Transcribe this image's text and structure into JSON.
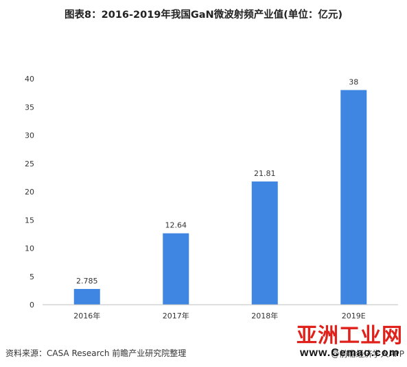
{
  "chart_data": {
    "type": "bar",
    "title": "图表8：2016-2019年我国GaN微波射频产业值(单位：亿元)",
    "categories": [
      "2016年",
      "2017年",
      "2018年",
      "2019E"
    ],
    "values": [
      2.785,
      12.64,
      21.81,
      38
    ],
    "data_labels": [
      "2.785",
      "12.64",
      "21.81",
      "38"
    ],
    "ylim": [
      0,
      40
    ],
    "yticks": [
      "0",
      "5",
      "10",
      "15",
      "20",
      "25",
      "30",
      "35",
      "40"
    ],
    "xlabel": "",
    "ylabel": "",
    "grid": false,
    "bar_color": "#3f86e3"
  },
  "footer": {
    "source": "资料来源：CASA Research 前瞻产业研究院整理",
    "app": "@前瞻经济学人APP"
  },
  "watermark": {
    "site_name": "亚洲工业网",
    "site_url": "www.Cemao.com"
  }
}
